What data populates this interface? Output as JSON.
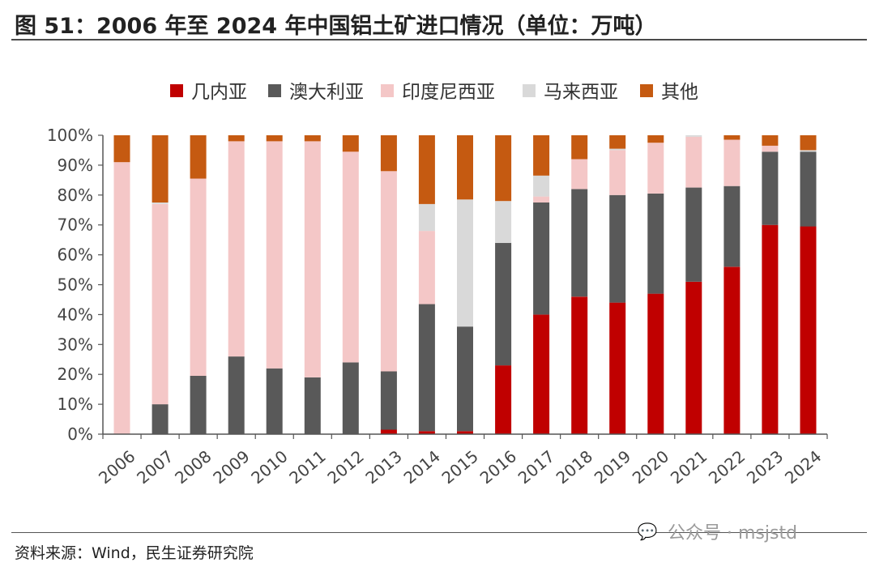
{
  "title": "图 51：2006 年至 2024 年中国铝土矿进口情况（单位：万吨）",
  "source": "资料来源：Wind，民生证券研究院",
  "watermark": {
    "text": "公众号 · msjstd",
    "icon": "wechat-icon"
  },
  "chart_data": {
    "type": "bar",
    "stacked": true,
    "categories": [
      "2006",
      "2007",
      "2008",
      "2009",
      "2010",
      "2011",
      "2012",
      "2013",
      "2014",
      "2015",
      "2016",
      "2017",
      "2018",
      "2019",
      "2020",
      "2021",
      "2022",
      "2023",
      "2024"
    ],
    "series": [
      {
        "name": "几内亚",
        "color": "#c00000",
        "values": [
          0,
          0,
          0,
          0,
          0,
          0,
          0,
          1.5,
          1,
          1,
          23,
          40,
          46,
          44,
          47,
          51,
          56,
          70,
          69.5
        ]
      },
      {
        "name": "澳大利亚",
        "color": "#595959",
        "values": [
          0,
          10,
          19.5,
          26,
          22,
          19,
          24,
          19.5,
          42.5,
          35,
          41,
          37.5,
          36,
          36,
          33.5,
          31.5,
          27,
          24.5,
          25
        ]
      },
      {
        "name": "印度尼西亚",
        "color": "#f4c7c7",
        "values": [
          91,
          67,
          66,
          72,
          76,
          79,
          70.5,
          67,
          24.5,
          0,
          0,
          2,
          10,
          15,
          17,
          17,
          15.5,
          2,
          0
        ]
      },
      {
        "name": "马来西亚",
        "color": "#d9d9d9",
        "values": [
          0,
          0.5,
          0,
          0,
          0,
          0,
          0,
          0,
          9,
          42.5,
          14,
          7,
          0,
          0.5,
          0,
          0.5,
          0,
          0,
          0.5
        ]
      },
      {
        "name": "其他",
        "color": "#c55a11",
        "values": [
          9,
          22.5,
          14.5,
          2,
          2,
          2,
          5.5,
          12,
          23,
          21.5,
          22,
          13.5,
          8,
          4.5,
          2.5,
          0,
          1.5,
          3.5,
          5
        ]
      }
    ],
    "yticks": [
      "0%",
      "10%",
      "20%",
      "30%",
      "40%",
      "50%",
      "60%",
      "70%",
      "80%",
      "90%",
      "100%"
    ],
    "ylim": [
      0,
      100
    ],
    "grid": false,
    "legend_position": "top"
  }
}
